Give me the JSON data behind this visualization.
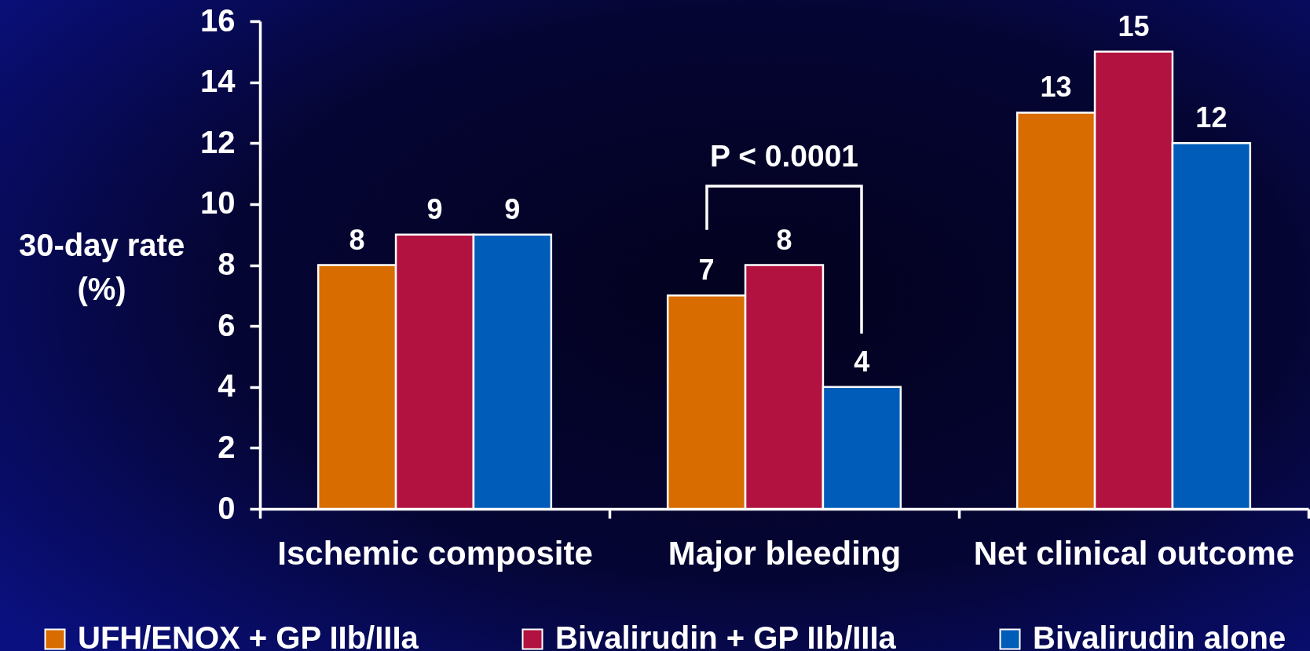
{
  "chart_data": {
    "type": "bar",
    "ylabel": "30-day rate (%)",
    "categories": [
      "Ischemic composite",
      "Major bleeding",
      "Net clinical outcome"
    ],
    "series": [
      {
        "name": "UFH/ENOX + GP IIb/IIIa",
        "color": "#d86c00",
        "values": [
          8,
          7,
          13
        ]
      },
      {
        "name": "Bivalirudin + GP IIb/IIIa",
        "color": "#b11240",
        "values": [
          9,
          8,
          15
        ]
      },
      {
        "name": "Bivalirudin alone",
        "color": "#005cb9",
        "values": [
          9,
          4,
          12
        ]
      }
    ],
    "ylim": [
      0,
      16
    ],
    "yticks": [
      0,
      2,
      4,
      6,
      8,
      10,
      12,
      14,
      16
    ],
    "grid": false,
    "data_labels": true,
    "legend": "bottom",
    "annotations": [
      "P < 0.0001"
    ]
  }
}
